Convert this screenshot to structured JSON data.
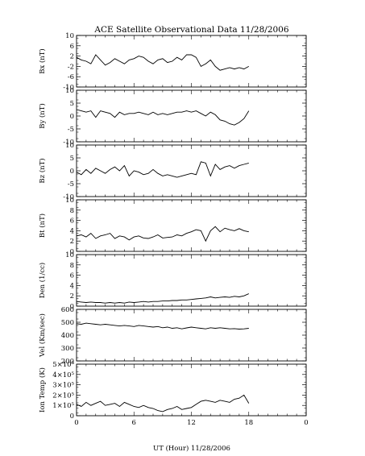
{
  "title": "ACE Satellite Observational Data   11/28/2006",
  "xlabel": "UT (Hour)  11/28/2006",
  "x_ticks": [
    "0",
    "6",
    "12",
    "18",
    "0"
  ],
  "chart_data": [
    {
      "type": "line",
      "ylabel": "Bx (nT)",
      "ylim": [
        -10,
        10
      ],
      "yticks": [
        "10",
        "6",
        "2",
        "-2",
        "-6",
        "-10"
      ],
      "xlim": [
        0,
        24
      ],
      "x": [
        0,
        0.5,
        1.0,
        1.5,
        2.0,
        2.5,
        3.0,
        3.5,
        4.0,
        4.5,
        5.0,
        5.5,
        6.0,
        6.5,
        7.0,
        7.5,
        8.0,
        8.5,
        9.0,
        9.5,
        10.0,
        10.5,
        11.0,
        11.5,
        12.0,
        12.5,
        13.0,
        13.5,
        14.0,
        14.5,
        15.0,
        15.5,
        16.0,
        16.5,
        17.0,
        17.5,
        18.0
      ],
      "series": [
        {
          "values": [
            1.5,
            0.5,
            0.0,
            -1.0,
            2.5,
            0.5,
            -1.5,
            -0.5,
            1.0,
            0.0,
            -1.0,
            0.5,
            1.0,
            2.0,
            1.5,
            0.0,
            -1.0,
            0.5,
            1.0,
            -0.5,
            0.0,
            1.5,
            0.5,
            2.5,
            2.5,
            1.5,
            -2.0,
            -1.0,
            0.5,
            -2.0,
            -3.5,
            -3.0,
            -2.5,
            -3.0,
            -2.5,
            -3.0,
            -2.0
          ]
        }
      ]
    },
    {
      "type": "line",
      "ylabel": "By (nT)",
      "ylim": [
        -10,
        10
      ],
      "yticks": [
        "10",
        "5",
        "0",
        "-5",
        "-10"
      ],
      "xlim": [
        0,
        24
      ],
      "x": [
        0,
        0.5,
        1.0,
        1.5,
        2.0,
        2.5,
        3.0,
        3.5,
        4.0,
        4.5,
        5.0,
        5.5,
        6.0,
        6.5,
        7.0,
        7.5,
        8.0,
        8.5,
        9.0,
        9.5,
        10.0,
        10.5,
        11.0,
        11.5,
        12.0,
        12.5,
        13.0,
        13.5,
        14.0,
        14.5,
        15.0,
        15.5,
        16.0,
        16.5,
        17.0,
        17.5,
        18.0
      ],
      "series": [
        {
          "values": [
            2.5,
            2.0,
            1.5,
            2.0,
            -0.5,
            2.0,
            1.5,
            1.0,
            -0.5,
            1.5,
            0.5,
            1.0,
            1.0,
            1.5,
            1.0,
            0.5,
            1.5,
            0.5,
            1.0,
            0.5,
            1.0,
            1.5,
            1.5,
            2.0,
            1.5,
            2.0,
            1.0,
            0.0,
            1.5,
            0.5,
            -1.5,
            -2.0,
            -3.0,
            -3.5,
            -2.5,
            -1.0,
            2.0
          ]
        }
      ]
    },
    {
      "type": "line",
      "ylabel": "Bz (nT)",
      "ylim": [
        -10,
        10
      ],
      "yticks": [
        "10",
        "5",
        "0",
        "-5",
        "-10"
      ],
      "xlim": [
        0,
        24
      ],
      "x": [
        0,
        0.5,
        1.0,
        1.5,
        2.0,
        2.5,
        3.0,
        3.5,
        4.0,
        4.5,
        5.0,
        5.5,
        6.0,
        6.5,
        7.0,
        7.5,
        8.0,
        8.5,
        9.0,
        9.5,
        10.0,
        10.5,
        11.0,
        11.5,
        12.0,
        12.5,
        13.0,
        13.5,
        14.0,
        14.5,
        15.0,
        15.5,
        16.0,
        16.5,
        17.0,
        17.5,
        18.0
      ],
      "series": [
        {
          "values": [
            -0.5,
            -1.5,
            0.5,
            -1.0,
            1.0,
            0.0,
            -1.0,
            0.5,
            1.5,
            0.0,
            2.0,
            -2.0,
            0.0,
            -0.5,
            -1.5,
            -1.0,
            0.5,
            -1.0,
            -2.0,
            -1.5,
            -2.0,
            -2.5,
            -2.0,
            -1.5,
            -1.0,
            -1.5,
            3.5,
            3.0,
            -2.0,
            2.5,
            0.5,
            1.5,
            2.0,
            1.0,
            2.0,
            2.5,
            3.0
          ]
        }
      ]
    },
    {
      "type": "line",
      "ylabel": "Bt (nT)",
      "ylim": [
        0,
        10
      ],
      "yticks": [
        "10",
        "8",
        "6",
        "4",
        "2",
        "0"
      ],
      "xlim": [
        0,
        24
      ],
      "x": [
        0,
        0.5,
        1.0,
        1.5,
        2.0,
        2.5,
        3.0,
        3.5,
        4.0,
        4.5,
        5.0,
        5.5,
        6.0,
        6.5,
        7.0,
        7.5,
        8.0,
        8.5,
        9.0,
        9.5,
        10.0,
        10.5,
        11.0,
        11.5,
        12.0,
        12.5,
        13.0,
        13.5,
        14.0,
        14.5,
        15.0,
        15.5,
        16.0,
        16.5,
        17.0,
        17.5,
        18.0
      ],
      "series": [
        {
          "values": [
            3.0,
            3.2,
            2.8,
            3.5,
            2.5,
            3.0,
            3.2,
            3.5,
            2.5,
            3.0,
            2.8,
            2.2,
            2.8,
            3.0,
            2.6,
            2.5,
            2.8,
            3.2,
            2.6,
            2.7,
            2.8,
            3.2,
            3.0,
            3.5,
            3.8,
            4.2,
            4.0,
            2.0,
            4.0,
            4.8,
            3.8,
            4.5,
            4.2,
            4.0,
            4.4,
            4.0,
            3.8
          ]
        }
      ]
    },
    {
      "type": "line",
      "ylabel": "Den (1/cc)",
      "ylim": [
        0,
        10
      ],
      "yticks": [
        "10",
        "8",
        "6",
        "4",
        "2",
        "0"
      ],
      "xlim": [
        0,
        24
      ],
      "x": [
        0,
        0.5,
        1.0,
        1.5,
        2.0,
        2.5,
        3.0,
        3.5,
        4.0,
        4.5,
        5.0,
        5.5,
        6.0,
        6.5,
        7.0,
        7.5,
        8.0,
        8.5,
        9.0,
        9.5,
        10.0,
        10.5,
        11.0,
        11.5,
        12.0,
        12.5,
        13.0,
        13.5,
        14.0,
        14.5,
        15.0,
        15.5,
        16.0,
        16.5,
        17.0,
        17.5,
        18.0
      ],
      "series": [
        {
          "values": [
            0.9,
            0.8,
            0.7,
            0.8,
            0.7,
            0.7,
            0.6,
            0.7,
            0.6,
            0.7,
            0.6,
            0.8,
            0.7,
            0.8,
            0.9,
            0.8,
            0.9,
            0.9,
            1.0,
            1.0,
            1.1,
            1.1,
            1.2,
            1.2,
            1.3,
            1.4,
            1.5,
            1.6,
            1.8,
            1.6,
            1.7,
            1.8,
            1.7,
            1.9,
            1.8,
            2.0,
            2.4
          ]
        }
      ]
    },
    {
      "type": "line",
      "ylabel": "Vel (Km/sec)",
      "ylim": [
        200,
        650
      ],
      "yticks": [
        "600",
        "500",
        "400",
        "300",
        "200"
      ],
      "xlim": [
        0,
        24
      ],
      "x": [
        0,
        0.5,
        1.0,
        1.5,
        2.0,
        2.5,
        3.0,
        3.5,
        4.0,
        4.5,
        5.0,
        5.5,
        6.0,
        6.5,
        7.0,
        7.5,
        8.0,
        8.5,
        9.0,
        9.5,
        10.0,
        10.5,
        11.0,
        11.5,
        12.0,
        12.5,
        13.0,
        13.5,
        14.0,
        14.5,
        15.0,
        15.5,
        16.0,
        16.5,
        17.0,
        17.5,
        18.0
      ],
      "series": [
        {
          "values": [
            525,
            520,
            530,
            525,
            520,
            515,
            520,
            515,
            510,
            505,
            510,
            505,
            500,
            510,
            505,
            500,
            495,
            500,
            490,
            495,
            485,
            490,
            480,
            488,
            495,
            490,
            485,
            480,
            490,
            485,
            490,
            485,
            480,
            482,
            478,
            480,
            485
          ]
        }
      ]
    },
    {
      "type": "line",
      "ylabel": "Ion Temp (K)",
      "ylim": [
        0,
        500000
      ],
      "yticks": [
        "5×10⁵",
        "4×10⁵",
        "3×10⁵",
        "2×10⁵",
        "1×10⁵",
        "0"
      ],
      "xlim": [
        0,
        24
      ],
      "x": [
        0,
        0.5,
        1.0,
        1.5,
        2.0,
        2.5,
        3.0,
        3.5,
        4.0,
        4.5,
        5.0,
        5.5,
        6.0,
        6.5,
        7.0,
        7.5,
        8.0,
        8.5,
        9.0,
        9.5,
        10.0,
        10.5,
        11.0,
        11.5,
        12.0,
        12.5,
        13.0,
        13.5,
        14.0,
        14.5,
        15.0,
        15.5,
        16.0,
        16.5,
        17.0,
        17.5,
        18.0
      ],
      "series": [
        {
          "values": [
            110000,
            90000,
            130000,
            100000,
            120000,
            140000,
            100000,
            110000,
            120000,
            90000,
            130000,
            110000,
            90000,
            80000,
            100000,
            80000,
            70000,
            50000,
            40000,
            60000,
            70000,
            90000,
            60000,
            70000,
            80000,
            110000,
            140000,
            150000,
            140000,
            130000,
            150000,
            140000,
            130000,
            160000,
            170000,
            200000,
            120000
          ]
        }
      ]
    }
  ]
}
